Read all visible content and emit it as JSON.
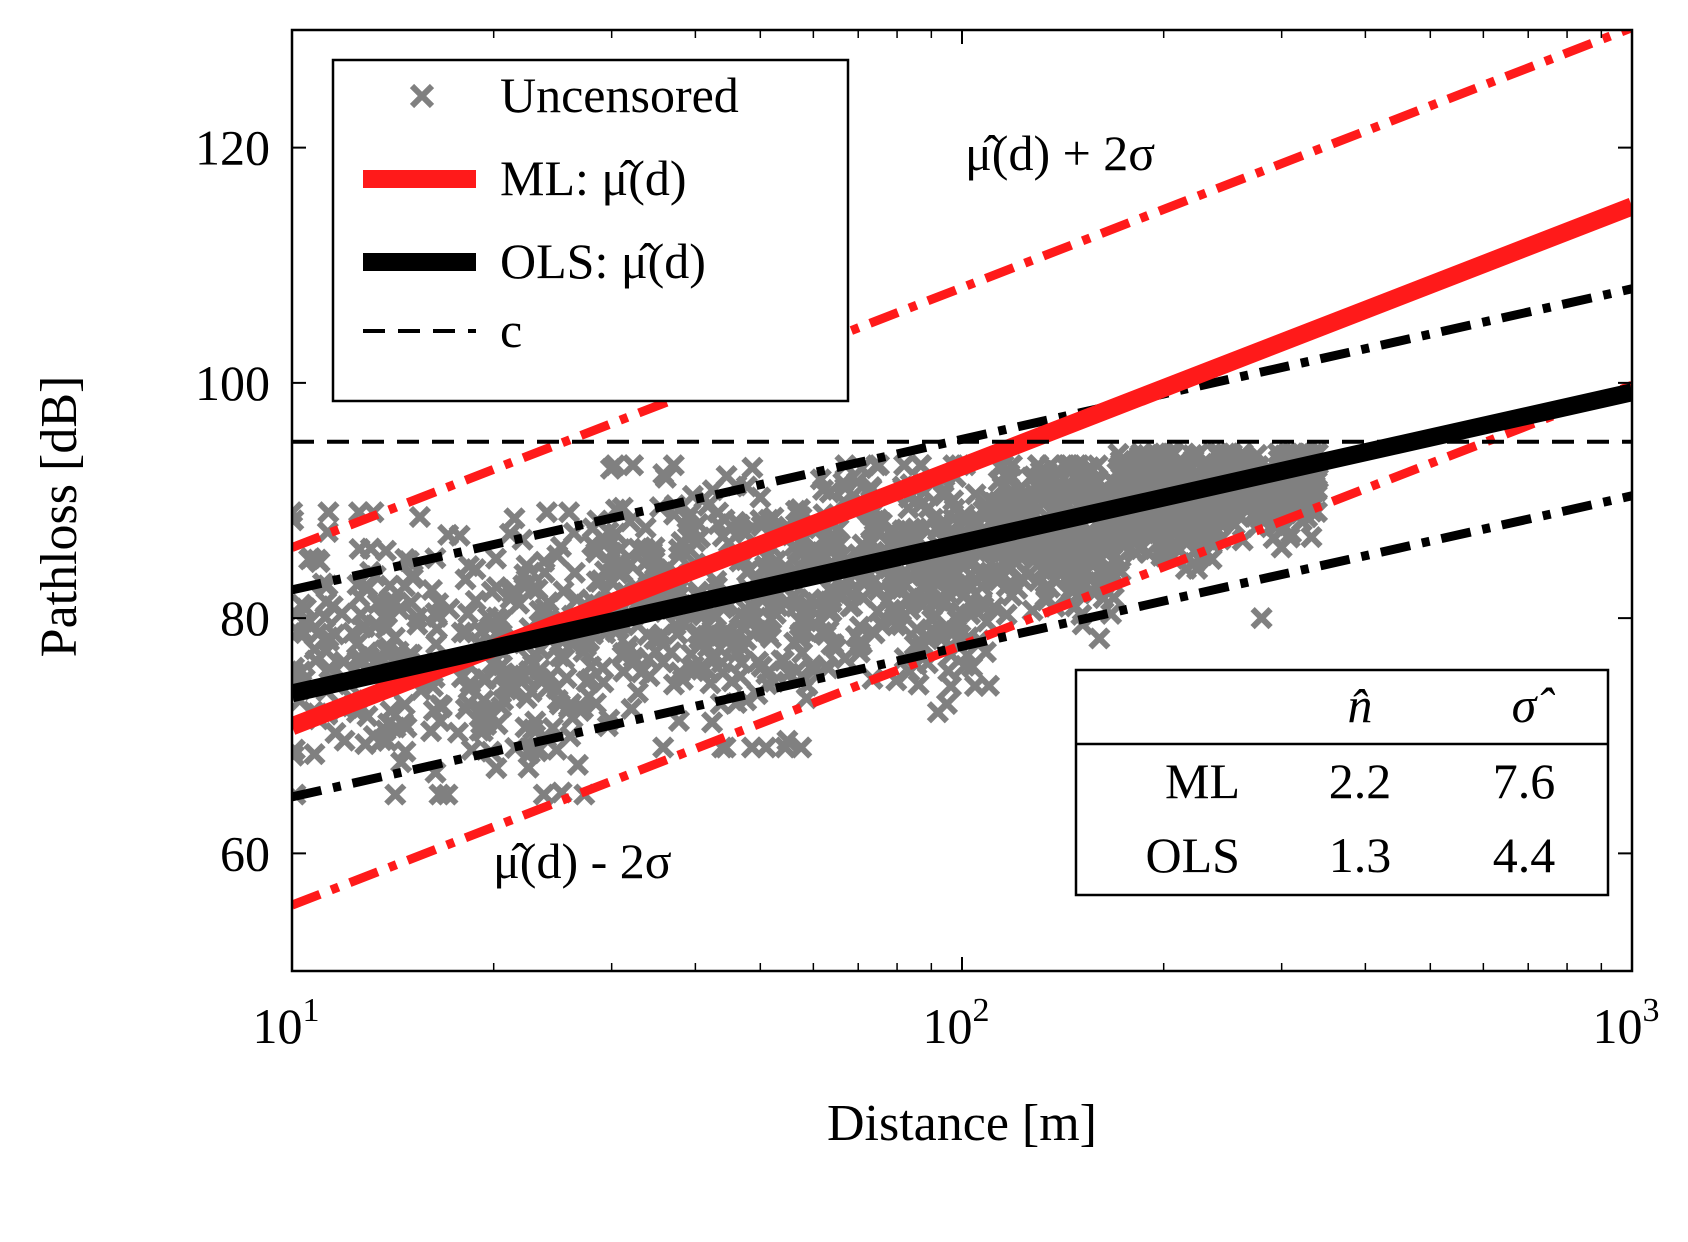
{
  "chart_data": {
    "type": "scatter",
    "xlabel": "Distance [m]",
    "ylabel": "Pathloss [dB]",
    "x_scale": "log",
    "xlim": [
      10,
      1000
    ],
    "ylim": [
      50,
      130
    ],
    "x_ticks": [
      10,
      100,
      1000
    ],
    "x_tick_labels": [
      {
        "base": "10",
        "exp": "1"
      },
      {
        "base": "10",
        "exp": "2"
      },
      {
        "base": "10",
        "exp": "3"
      }
    ],
    "y_ticks": [
      60,
      80,
      100,
      120
    ],
    "y_tick_labels": [
      "60",
      "80",
      "100",
      "120"
    ],
    "grid": false,
    "legend": {
      "position": "top-left",
      "entries": [
        {
          "label": "Uncensored",
          "style": "marker-x",
          "color": "#808080"
        },
        {
          "label": "ML: μ̂(d)",
          "style": "solid-thick",
          "color": "#ff1a1a"
        },
        {
          "label": "OLS: μ̂(d)",
          "style": "solid-thick",
          "color": "#000000"
        },
        {
          "label": "c",
          "style": "dashed",
          "color": "#000000"
        }
      ]
    },
    "series": [
      {
        "name": "ML: μ̂(d)",
        "kind": "line",
        "x": [
          10,
          1000
        ],
        "y": [
          70.8,
          115.0
        ],
        "color": "#ff1a1a"
      },
      {
        "name": "OLS: μ̂(d)",
        "kind": "line",
        "x": [
          10,
          1000
        ],
        "y": [
          73.6,
          99.2
        ],
        "color": "#000000"
      },
      {
        "name": "c",
        "kind": "line",
        "x": [
          10,
          1000
        ],
        "y": [
          95,
          95
        ],
        "color": "#000000"
      }
    ],
    "bands": [
      {
        "of": "ML: μ̂(d)",
        "x": [
          10,
          1000
        ],
        "upper": [
          86.0,
          130.2
        ],
        "lower": [
          55.6,
          99.8
        ],
        "color": "#ff1a1a"
      },
      {
        "of": "OLS: μ̂(d)",
        "x": [
          10,
          1000
        ],
        "upper": [
          82.4,
          108.0
        ],
        "lower": [
          64.8,
          90.4
        ],
        "color": "#000000"
      }
    ],
    "scatter": {
      "name": "Uncensored",
      "color": "#808080",
      "x_range": [
        10,
        340
      ],
      "clusters": [
        {
          "x": [
            10,
            28
          ],
          "y": [
            65,
            89
          ],
          "center": 77
        },
        {
          "x": [
            28,
            60
          ],
          "y": [
            69,
            93
          ],
          "center": 81
        },
        {
          "x": [
            60,
            110
          ],
          "y": [
            72,
            93
          ],
          "center": 84
        },
        {
          "x": [
            110,
            170
          ],
          "y": [
            78,
            93
          ],
          "center": 87
        },
        {
          "x": [
            170,
            240
          ],
          "y": [
            84,
            94
          ],
          "center": 90
        },
        {
          "x": [
            240,
            340
          ],
          "y": [
            86,
            94
          ],
          "center": 91
        }
      ],
      "outliers": [
        {
          "x": 280,
          "y": 80
        }
      ]
    },
    "annotations": [
      {
        "text": "μ̂(d) + 2σ",
        "x": 250,
        "y": 120
      },
      {
        "text": "μ̂(d) - 2σ",
        "x": 55,
        "y": 60
      }
    ],
    "table": {
      "header": [
        "",
        "n̂",
        "σ̂"
      ],
      "rows": [
        [
          "ML",
          "2.2",
          "7.6"
        ],
        [
          "OLS",
          "1.3",
          "4.4"
        ]
      ]
    }
  }
}
